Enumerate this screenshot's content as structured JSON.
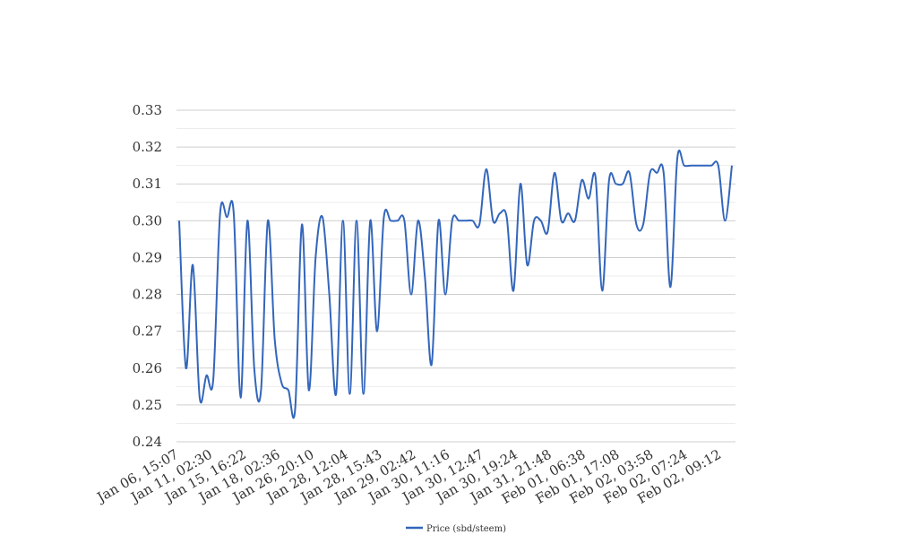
{
  "chart_data": {
    "type": "line",
    "title": "",
    "xlabel": "",
    "ylabel": "",
    "ylim": [
      0.24,
      0.33
    ],
    "yticks": [
      "0.24",
      "0.25",
      "0.26",
      "0.27",
      "0.28",
      "0.29",
      "0.30",
      "0.31",
      "0.32",
      "0.33"
    ],
    "grid": true,
    "legend_position": "bottom",
    "line_color": "#3366bb",
    "x_tick_labels": [
      "Jan 06, 15:07",
      "Jan 11, 02:30",
      "Jan 15, 16:22",
      "Jan 18, 02:36",
      "Jan 26, 20:10",
      "Jan 28, 12:04",
      "Jan 28, 15:43",
      "Jan 29, 02:42",
      "Jan 30, 11:16",
      "Jan 30, 12:47",
      "Jan 30, 19:24",
      "Jan 31, 21:48",
      "Feb 01, 06:38",
      "Feb 01, 17:08",
      "Feb 02, 03:58",
      "Feb 02, 07:24",
      "Feb 02, 09:12"
    ],
    "series": [
      {
        "name": "Price (sbd/steem)",
        "values": [
          0.3,
          0.26,
          0.288,
          0.252,
          0.258,
          0.257,
          0.302,
          0.301,
          0.302,
          0.252,
          0.3,
          0.26,
          0.254,
          0.3,
          0.268,
          0.256,
          0.254,
          0.249,
          0.299,
          0.254,
          0.29,
          0.301,
          0.28,
          0.253,
          0.3,
          0.253,
          0.3,
          0.253,
          0.3,
          0.27,
          0.301,
          0.3,
          0.3,
          0.3,
          0.28,
          0.3,
          0.285,
          0.261,
          0.3,
          0.28,
          0.3,
          0.3,
          0.3,
          0.3,
          0.299,
          0.314,
          0.3,
          0.302,
          0.301,
          0.281,
          0.31,
          0.288,
          0.3,
          0.3,
          0.297,
          0.313,
          0.3,
          0.302,
          0.3,
          0.311,
          0.306,
          0.312,
          0.281,
          0.311,
          0.31,
          0.31,
          0.313,
          0.299,
          0.299,
          0.313,
          0.313,
          0.313,
          0.282,
          0.317,
          0.315,
          0.315,
          0.315,
          0.315,
          0.315,
          0.315,
          0.3,
          0.315
        ]
      }
    ]
  }
}
